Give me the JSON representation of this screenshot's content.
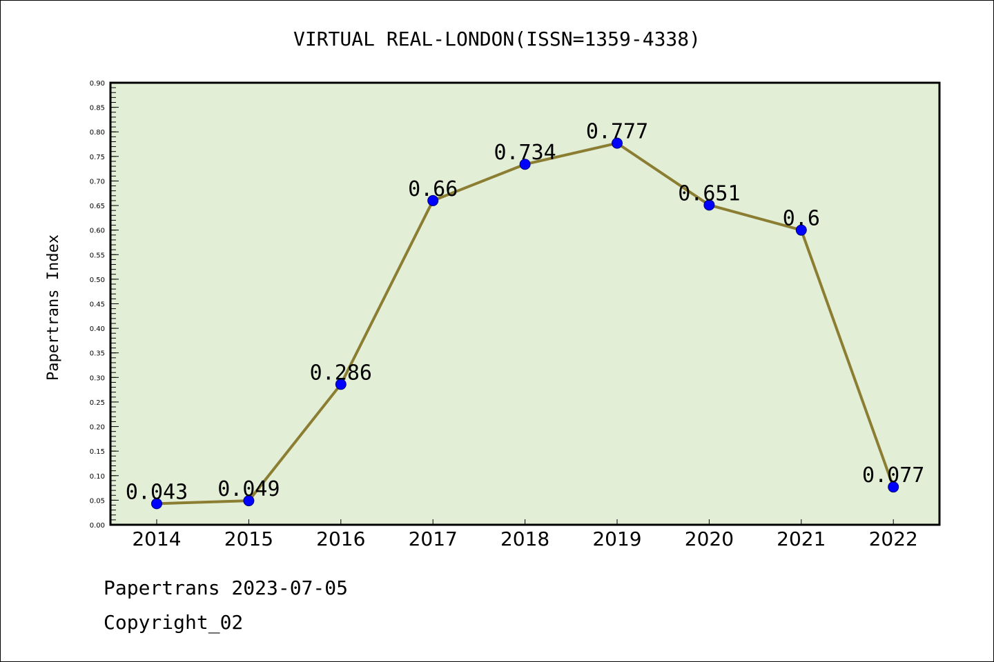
{
  "chart_data": {
    "type": "line",
    "title": "VIRTUAL REAL-LONDON(ISSN=1359-4338)",
    "xlabel": "",
    "ylabel": "Papertrans Index",
    "categories": [
      "2014",
      "2015",
      "2016",
      "2017",
      "2018",
      "2019",
      "2020",
      "2021",
      "2022"
    ],
    "values": [
      0.043,
      0.049,
      0.286,
      0.66,
      0.734,
      0.777,
      0.651,
      0.6,
      0.077
    ],
    "data_labels": [
      "0.043",
      "0.049",
      "0.286",
      "0.66",
      "0.734",
      "0.777",
      "0.651",
      "0.6",
      "0.077"
    ],
    "ylim": [
      0,
      0.9
    ],
    "y_major_ticks": [
      "0.00",
      "0.05",
      "0.10",
      "0.15",
      "0.20",
      "0.25",
      "0.30",
      "0.35",
      "0.40",
      "0.45",
      "0.50",
      "0.55",
      "0.60",
      "0.65",
      "0.70",
      "0.75",
      "0.80",
      "0.85",
      "0.90"
    ],
    "grid": false,
    "legend": "none",
    "colors": {
      "plot_background": "#e2efd6",
      "line": "#8b7d32",
      "marker": "#0000ff",
      "axis": "#000000"
    }
  },
  "footer": {
    "date_line": "Papertrans 2023-07-05",
    "copyright_line": "Copyright_02"
  }
}
